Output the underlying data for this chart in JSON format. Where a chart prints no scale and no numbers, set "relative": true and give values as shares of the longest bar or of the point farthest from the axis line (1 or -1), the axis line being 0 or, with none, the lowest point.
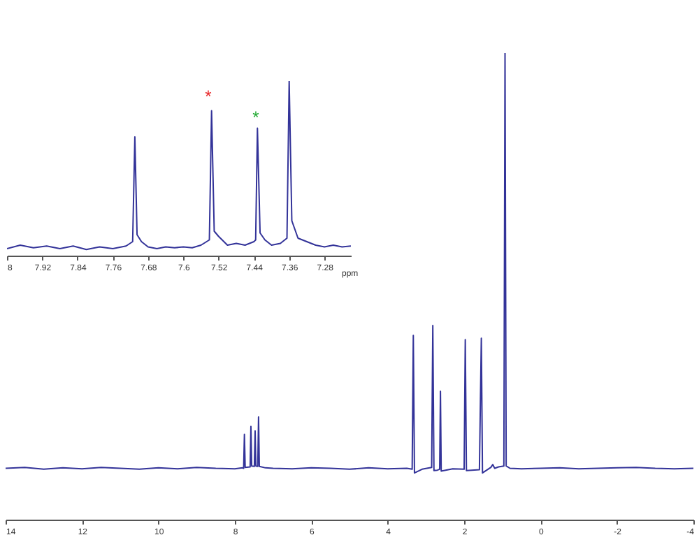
{
  "chart_data": [
    {
      "type": "line",
      "relative": true,
      "xlabel": "ppm",
      "xlim": [
        8,
        7.22
      ],
      "xticks": [
        8,
        7.92,
        7.84,
        7.76,
        7.68,
        7.6,
        7.52,
        7.44,
        7.36,
        7.28
      ],
      "grid": false,
      "marker": "none",
      "annotations": [
        "*",
        "*"
      ],
      "series": [
        {
          "color": "#333399",
          "x": [
            8,
            7.97,
            7.94,
            7.91,
            7.88,
            7.85,
            7.82,
            7.79,
            7.76,
            7.73,
            7.715,
            7.71,
            7.705,
            7.695,
            7.68,
            7.66,
            7.64,
            7.62,
            7.6,
            7.58,
            7.56,
            7.541,
            7.536,
            7.53,
            7.52,
            7.5,
            7.48,
            7.46,
            7.44,
            7.436,
            7.432,
            7.426,
            7.415,
            7.4,
            7.38,
            7.365,
            7.36,
            7.354,
            7.34,
            7.32,
            7.3,
            7.28,
            7.26,
            7.24,
            7.22
          ],
          "values": [
            0.04,
            0.06,
            0.045,
            0.055,
            0.04,
            0.055,
            0.035,
            0.05,
            0.04,
            0.055,
            0.08,
            0.68,
            0.12,
            0.08,
            0.05,
            0.04,
            0.05,
            0.045,
            0.05,
            0.045,
            0.06,
            0.09,
            0.83,
            0.14,
            0.11,
            0.06,
            0.07,
            0.06,
            0.08,
            0.09,
            0.73,
            0.13,
            0.09,
            0.06,
            0.07,
            0.1,
            1,
            0.2,
            0.1,
            0.08,
            0.06,
            0.05,
            0.06,
            0.05,
            0.055
          ]
        }
      ]
    },
    {
      "type": "line",
      "relative": true,
      "xlim": [
        14,
        -4
      ],
      "xticks": [
        14,
        12,
        10,
        8,
        6,
        4,
        2,
        0,
        -2,
        -4
      ],
      "grid": false,
      "marker": "none",
      "series": [
        {
          "color": "#333399",
          "x": [
            14,
            13.5,
            13,
            12.5,
            12,
            11.5,
            11,
            10.5,
            10,
            9.5,
            9,
            8.5,
            8,
            7.8,
            7.77,
            7.75,
            7.73,
            7.6,
            7.58,
            7.56,
            7.49,
            7.47,
            7.45,
            7.4,
            7.38,
            7.36,
            7.2,
            7,
            6.5,
            6,
            5.5,
            5,
            4.5,
            4,
            3.5,
            3.36,
            3.33,
            3.3,
            3.1,
            2.85,
            2.82,
            2.79,
            2.7,
            2.64,
            2.62,
            2.6,
            2.3,
            2,
            1.97,
            1.94,
            1.8,
            1.6,
            1.55,
            1.52,
            1.3,
            1.25,
            1.2,
            1.1,
            0.96,
            0.93,
            0.9,
            0.8,
            0.5,
            0,
            -0.5,
            -1,
            -1.5,
            -2,
            -2.5,
            -3,
            -3.5,
            -4
          ],
          "values": [
            0.11,
            0.112,
            0.108,
            0.111,
            0.109,
            0.112,
            0.11,
            0.108,
            0.111,
            0.109,
            0.112,
            0.11,
            0.109,
            0.111,
            0.11,
            0.183,
            0.112,
            0.113,
            0.2,
            0.115,
            0.114,
            0.19,
            0.115,
            0.114,
            0.22,
            0.114,
            0.111,
            0.11,
            0.109,
            0.111,
            0.11,
            0.108,
            0.111,
            0.109,
            0.11,
            0.108,
            0.395,
            0.1,
            0.108,
            0.112,
            0.416,
            0.105,
            0.106,
            0.108,
            0.275,
            0.104,
            0.109,
            0.108,
            0.386,
            0.105,
            0.106,
            0.107,
            0.389,
            0.1,
            0.112,
            0.118,
            0.11,
            0.113,
            0.115,
            1,
            0.115,
            0.11,
            0.109,
            0.11,
            0.111,
            0.109,
            0.11,
            0.111,
            0.112,
            0.11,
            0.109,
            0.11
          ]
        }
      ]
    }
  ]
}
